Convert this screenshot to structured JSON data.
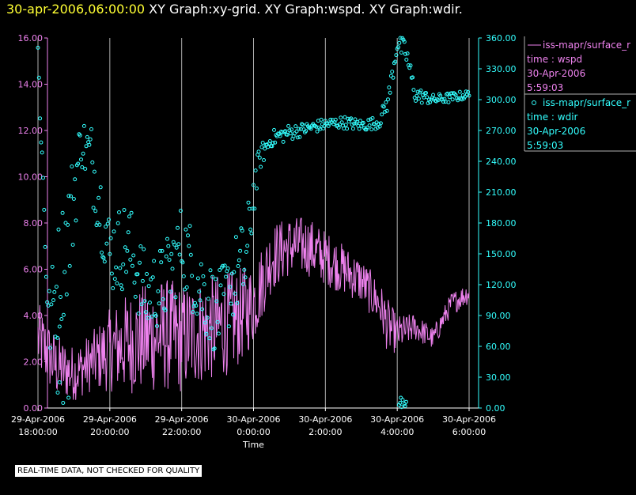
{
  "header": {
    "timestamp": "30-apr-2006,06:00:00",
    "graphs": "  XY Graph:xy-grid.  XY Graph:wspd.  XY Graph:wdir."
  },
  "footer_note": "REAL-TIME DATA, NOT CHECKED FOR QUALITY",
  "colors": {
    "background": "#000000",
    "wspd": "#ee82ee",
    "wdir": "#33ffff",
    "timestamp": "#ffff33",
    "grid": "#c0c0c0"
  },
  "chart_data": {
    "type": "line",
    "title": "XY Graph:xy-grid. XY Graph:wspd. XY Graph:wdir.",
    "xlabel": "Time",
    "x_ticks": [
      {
        "hours": 0,
        "line1": "29-Apr-2006",
        "line2": "18:00:00"
      },
      {
        "hours": 2,
        "line1": "29-Apr-2006",
        "line2": "20:00:00"
      },
      {
        "hours": 4,
        "line1": "29-Apr-2006",
        "line2": "22:00:00"
      },
      {
        "hours": 6,
        "line1": "30-Apr-2006",
        "line2": "0:00:00"
      },
      {
        "hours": 8,
        "line1": "30-Apr-2006",
        "line2": "2:00:00"
      },
      {
        "hours": 10,
        "line1": "30-Apr-2006",
        "line2": "4:00:00"
      },
      {
        "hours": 12,
        "line1": "30-Apr-2006",
        "line2": "6:00:00"
      }
    ],
    "x_range_hours": [
      0,
      12
    ],
    "y_left": {
      "range": [
        0,
        16
      ],
      "ticks": [
        "0.00",
        "2.00",
        "4.00",
        "6.00",
        "8.00",
        "10.00",
        "12.00",
        "14.00",
        "16.00"
      ]
    },
    "y_right": {
      "range": [
        0,
        360
      ],
      "ticks": [
        "0.00",
        "30.00",
        "60.00",
        "90.00",
        "120.00",
        "150.00",
        "180.00",
        "210.00",
        "240.00",
        "270.00",
        "300.00",
        "330.00",
        "360.00"
      ]
    },
    "legend": [
      {
        "marker": "line",
        "series": "iss-mapr/surface_r",
        "field": "time : wspd",
        "date": "30-Apr-2006",
        "time": "5:59:03"
      },
      {
        "marker": "circle",
        "series": "iss-mapr/surface_r",
        "field": "time : wdir",
        "date": "30-Apr-2006",
        "time": "5:59:03"
      }
    ],
    "series": [
      {
        "name": "wspd",
        "axis": "left",
        "style": "line",
        "x_hours": [
          0.0,
          0.5,
          1.0,
          1.5,
          2.0,
          2.5,
          3.0,
          3.5,
          4.0,
          4.5,
          5.0,
          5.5,
          6.0,
          6.25,
          6.5,
          7.0,
          7.5,
          8.0,
          8.5,
          9.0,
          9.5,
          9.75,
          10.0,
          10.5,
          11.0,
          11.5,
          12.0
        ],
        "values": [
          3.0,
          1.8,
          1.5,
          2.0,
          2.5,
          2.8,
          3.0,
          3.2,
          3.0,
          3.3,
          3.5,
          3.8,
          4.5,
          5.5,
          6.5,
          7.0,
          7.0,
          6.5,
          6.0,
          5.5,
          4.5,
          3.5,
          3.2,
          3.5,
          3.0,
          4.5,
          5.0
        ],
        "amplitude": [
          1.6,
          1.4,
          1.2,
          1.3,
          1.8,
          2.2,
          2.4,
          2.5,
          2.4,
          2.3,
          2.3,
          2.2,
          1.8,
          1.6,
          1.5,
          1.3,
          1.3,
          1.2,
          1.1,
          1.0,
          1.0,
          1.2,
          0.8,
          0.6,
          0.5,
          0.5,
          0.5
        ]
      },
      {
        "name": "wdir",
        "axis": "right",
        "style": "scatter",
        "x_hours": [
          0.0,
          0.3,
          0.6,
          0.9,
          1.2,
          1.5,
          2.0,
          2.5,
          3.0,
          3.5,
          4.0,
          4.5,
          5.0,
          5.5,
          5.8,
          6.0,
          6.2,
          6.5,
          7.0,
          7.5,
          8.0,
          8.5,
          9.0,
          9.5,
          9.75,
          10.0,
          10.25,
          10.5,
          11.0,
          11.5,
          12.0
        ],
        "values": [
          345.0,
          80.0,
          130.0,
          180.0,
          260.0,
          240.0,
          150.0,
          160.0,
          110.0,
          120.0,
          160.0,
          120.0,
          90.0,
          130.0,
          140.0,
          210.0,
          245.0,
          262.0,
          268.0,
          272.0,
          276.0,
          278.0,
          275.0,
          278.0,
          300.0,
          355.0,
          345.0,
          305.0,
          300.0,
          302.0,
          305.0
        ],
        "spread": [
          15.0,
          40.0,
          60.0,
          60.0,
          25.0,
          40.0,
          40.0,
          45.0,
          40.0,
          40.0,
          40.0,
          45.0,
          40.0,
          40.0,
          50.0,
          25.0,
          12.0,
          8.0,
          8.0,
          6.0,
          6.0,
          6.0,
          6.0,
          6.0,
          10.0,
          10.0,
          12.0,
          8.0,
          5.0,
          5.0,
          4.0
        ],
        "outliers_hours": [
          10.05,
          10.08,
          10.1,
          10.15,
          10.2,
          10.22,
          10.25,
          10.12,
          0.55,
          0.7,
          0.85,
          0.6
        ],
        "outliers_values": [
          3.0,
          5.0,
          10.0,
          8.0,
          4.0,
          2.0,
          6.0,
          1.0,
          15.0,
          5.0,
          10.0,
          25.0
        ]
      }
    ]
  }
}
